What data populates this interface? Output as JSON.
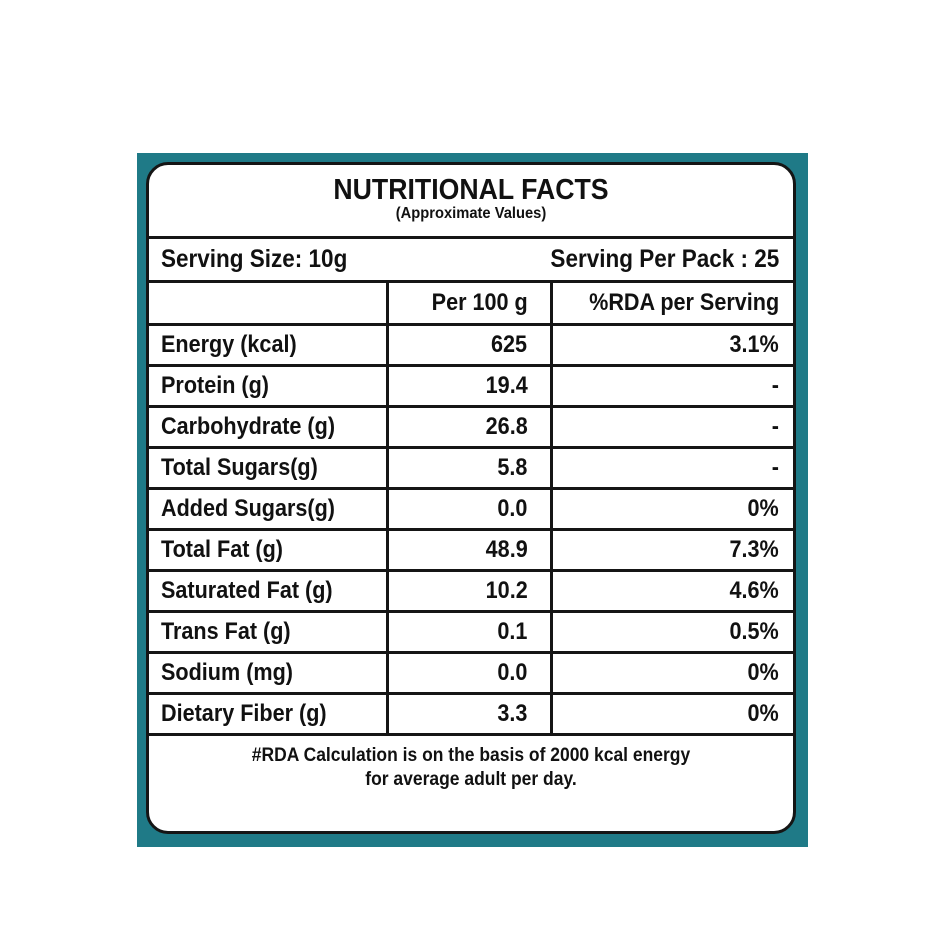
{
  "colors": {
    "background_border": "#1f7a87",
    "text": "#111111",
    "lines": "#151515"
  },
  "label": {
    "title": "NUTRITIONAL FACTS",
    "subtitle": "(Approximate Values)",
    "serving_size": "Serving Size: 10g",
    "servings_per_pack": "Serving Per Pack : 25",
    "columns": [
      "",
      "Per 100 g",
      "%RDA per Serving"
    ],
    "rows": [
      {
        "nutrient": "Energy (kcal)",
        "per_100g": "625",
        "rda": "3.1%"
      },
      {
        "nutrient": "Protein (g)",
        "per_100g": "19.4",
        "rda": "-"
      },
      {
        "nutrient": "Carbohydrate (g)",
        "per_100g": "26.8",
        "rda": "-"
      },
      {
        "nutrient": "Total Sugars(g)",
        "per_100g": "5.8",
        "rda": "-"
      },
      {
        "nutrient": "Added Sugars(g)",
        "per_100g": "0.0",
        "rda": "0%"
      },
      {
        "nutrient": "Total Fat (g)",
        "per_100g": "48.9",
        "rda": "7.3%"
      },
      {
        "nutrient": "Saturated Fat (g)",
        "per_100g": "10.2",
        "rda": "4.6%"
      },
      {
        "nutrient": "Trans Fat (g)",
        "per_100g": "0.1",
        "rda": "0.5%"
      },
      {
        "nutrient": "Sodium (mg)",
        "per_100g": "0.0",
        "rda": "0%"
      },
      {
        "nutrient": "Dietary Fiber (g)",
        "per_100g": "3.3",
        "rda": "0%"
      }
    ],
    "footnote_line1": "#RDA Calculation is on the basis of 2000 kcal energy",
    "footnote_line2": "for average adult per day."
  }
}
